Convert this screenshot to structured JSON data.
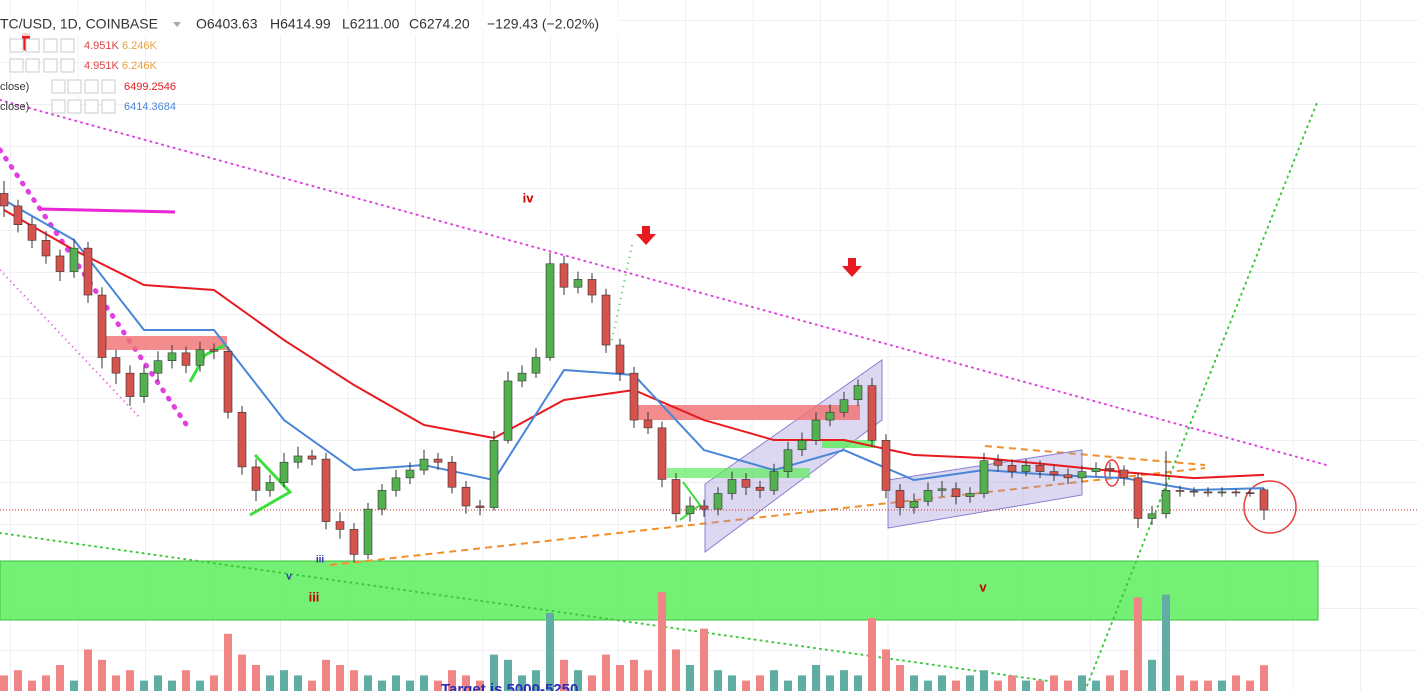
{
  "chart_data": {
    "type": "candlestick",
    "title": "TC/USD, 1D, COINBASE",
    "ohlc_labels": [
      "O6403.63",
      "H6414.99",
      "L6211.00",
      "C6274.20",
      "−129.43 (−2.02%)"
    ],
    "legend_rows": [
      [
        "4.951K",
        "6.246K"
      ],
      [
        "4.951K",
        "6.246K"
      ],
      [
        "close)",
        "6499.2546"
      ],
      [
        "close)",
        "6414.3684"
      ]
    ],
    "annotations": [
      "iv",
      "iii",
      "v",
      "iii",
      "v",
      "Target is 5000-5250"
    ],
    "ylim": [
      5116,
      9538
    ],
    "vlim": [
      0,
      25
    ],
    "up_color": "#53b04f",
    "down_color": "#d6524c",
    "vol_up_color": "#5fada3",
    "vol_down_color": "#ef8585",
    "ohlc": [
      [
        8300,
        8380,
        8150,
        8220
      ],
      [
        8220,
        8260,
        8050,
        8100
      ],
      [
        8100,
        8150,
        7950,
        8000
      ],
      [
        8000,
        8060,
        7850,
        7900
      ],
      [
        7900,
        7940,
        7740,
        7800
      ],
      [
        7800,
        8010,
        7760,
        7950
      ],
      [
        7950,
        7990,
        7600,
        7650
      ],
      [
        7650,
        7700,
        7180,
        7250
      ],
      [
        7250,
        7300,
        7080,
        7150
      ],
      [
        7150,
        7200,
        6940,
        7000
      ],
      [
        7000,
        7200,
        6960,
        7150
      ],
      [
        7150,
        7290,
        7100,
        7230
      ],
      [
        7230,
        7330,
        7180,
        7280
      ],
      [
        7280,
        7320,
        7150,
        7200
      ],
      [
        7200,
        7350,
        7160,
        7300
      ],
      [
        7300,
        7340,
        7240,
        7290
      ],
      [
        7290,
        7320,
        6860,
        6900
      ],
      [
        6900,
        6940,
        6500,
        6550
      ],
      [
        6550,
        6600,
        6330,
        6400
      ],
      [
        6400,
        6500,
        6360,
        6450
      ],
      [
        6450,
        6640,
        6420,
        6580
      ],
      [
        6580,
        6680,
        6540,
        6620
      ],
      [
        6620,
        6660,
        6560,
        6600
      ],
      [
        6600,
        6640,
        6150,
        6200
      ],
      [
        6200,
        6260,
        6090,
        6150
      ],
      [
        6150,
        6190,
        5940,
        5990
      ],
      [
        5990,
        6320,
        5960,
        6280
      ],
      [
        6280,
        6440,
        6240,
        6400
      ],
      [
        6400,
        6530,
        6360,
        6480
      ],
      [
        6480,
        6580,
        6440,
        6530
      ],
      [
        6530,
        6660,
        6500,
        6600
      ],
      [
        6600,
        6640,
        6530,
        6580
      ],
      [
        6580,
        6620,
        6380,
        6420
      ],
      [
        6420,
        6460,
        6250,
        6300
      ],
      [
        6300,
        6340,
        6240,
        6290
      ],
      [
        6290,
        6780,
        6270,
        6720
      ],
      [
        6720,
        7160,
        6700,
        7100
      ],
      [
        7100,
        7200,
        7060,
        7150
      ],
      [
        7150,
        7310,
        7120,
        7250
      ],
      [
        7250,
        7920,
        7230,
        7850
      ],
      [
        7850,
        7900,
        7650,
        7700
      ],
      [
        7700,
        7800,
        7660,
        7750
      ],
      [
        7750,
        7790,
        7600,
        7650
      ],
      [
        7650,
        7690,
        7280,
        7330
      ],
      [
        7330,
        7370,
        7100,
        7150
      ],
      [
        7150,
        7190,
        6800,
        6850
      ],
      [
        6850,
        6900,
        6760,
        6800
      ],
      [
        6800,
        6840,
        6420,
        6470
      ],
      [
        6470,
        6510,
        6200,
        6250
      ],
      [
        6250,
        6360,
        6200,
        6300
      ],
      [
        6300,
        6340,
        6230,
        6280
      ],
      [
        6280,
        6420,
        6240,
        6380
      ],
      [
        6380,
        6520,
        6340,
        6470
      ],
      [
        6470,
        6510,
        6370,
        6420
      ],
      [
        6420,
        6460,
        6350,
        6400
      ],
      [
        6400,
        6570,
        6370,
        6520
      ],
      [
        6520,
        6710,
        6480,
        6660
      ],
      [
        6660,
        6770,
        6620,
        6720
      ],
      [
        6720,
        6900,
        6690,
        6850
      ],
      [
        6850,
        6950,
        6810,
        6900
      ],
      [
        6900,
        7030,
        6870,
        6980
      ],
      [
        6980,
        7110,
        6940,
        7070
      ],
      [
        7070,
        7120,
        6680,
        6720
      ],
      [
        6720,
        6760,
        6350,
        6400
      ],
      [
        6400,
        6440,
        6240,
        6290
      ],
      [
        6290,
        6380,
        6250,
        6330
      ],
      [
        6330,
        6450,
        6300,
        6400
      ],
      [
        6400,
        6460,
        6360,
        6410
      ],
      [
        6410,
        6450,
        6310,
        6360
      ],
      [
        6360,
        6420,
        6320,
        6380
      ],
      [
        6380,
        6640,
        6350,
        6590
      ],
      [
        6590,
        6630,
        6520,
        6560
      ],
      [
        6560,
        6600,
        6480,
        6520
      ],
      [
        6520,
        6600,
        6490,
        6560
      ],
      [
        6560,
        6590,
        6480,
        6520
      ],
      [
        6520,
        6560,
        6460,
        6500
      ],
      [
        6500,
        6540,
        6440,
        6480
      ],
      [
        6480,
        6560,
        6450,
        6520
      ],
      [
        6520,
        6580,
        6490,
        6540
      ],
      [
        6540,
        6580,
        6490,
        6530
      ],
      [
        6530,
        6560,
        6430,
        6480
      ],
      [
        6480,
        6510,
        6160,
        6220
      ],
      [
        6220,
        6300,
        6180,
        6250
      ],
      [
        6250,
        6650,
        6220,
        6400
      ],
      [
        6400,
        6430,
        6360,
        6395
      ],
      [
        6395,
        6420,
        6360,
        6390
      ],
      [
        6390,
        6420,
        6360,
        6385
      ],
      [
        6385,
        6420,
        6360,
        6390
      ],
      [
        6390,
        6410,
        6360,
        6385
      ],
      [
        6385,
        6410,
        6360,
        6380
      ],
      [
        6403.63,
        6414.99,
        6211,
        6274.2
      ]
    ],
    "volume": [
      3,
      4,
      2,
      3,
      5,
      2,
      8,
      6,
      3,
      4,
      2,
      3,
      2,
      4,
      2,
      3,
      11,
      7,
      5,
      3,
      4,
      3,
      2,
      6,
      5,
      4,
      3,
      2,
      3,
      2,
      3,
      2,
      4,
      3,
      2,
      7,
      6,
      3,
      4,
      15,
      6,
      4,
      3,
      7,
      5,
      6,
      4,
      19,
      8,
      5,
      12,
      4,
      3,
      2,
      3,
      4,
      2,
      3,
      5,
      3,
      4,
      3,
      14,
      8,
      5,
      3,
      2,
      3,
      2,
      3,
      4,
      2,
      3,
      2,
      2,
      3,
      2,
      3,
      2,
      3,
      4,
      18,
      6,
      18.5,
      3,
      2,
      2,
      2,
      3,
      2,
      4.951
    ],
    "ma_x": [
      0,
      5,
      10,
      15,
      20,
      25,
      30,
      35,
      40,
      45,
      50,
      55,
      60,
      65,
      70,
      75,
      80,
      85,
      90
    ],
    "ma": [
      {
        "color": "#e8191f",
        "values": [
          8194,
          7938,
          7714,
          7682,
          7362,
          7074,
          6818,
          6735,
          6978,
          7042,
          6850,
          6722,
          6722,
          6626,
          6607,
          6562,
          6517,
          6478,
          6499.2546
        ]
      },
      {
        "color": "#4a86d8",
        "values": [
          8258,
          8002,
          7426,
          7426,
          6850,
          6530,
          6562,
          6466,
          7170,
          7138,
          6658,
          6530,
          6658,
          6466,
          6530,
          6498,
          6478,
          6402,
          6414.3684
        ]
      }
    ]
  }
}
